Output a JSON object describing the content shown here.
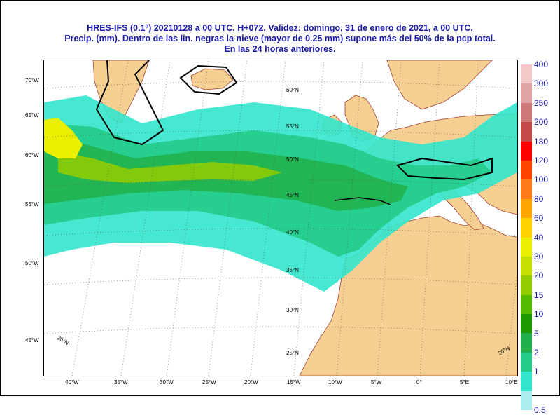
{
  "title": {
    "line1": "HRES-IFS (0.1º) 20210128 a 00 UTC.  H+072. Validez: domingo, 31 de enero de 2021,  a  00 UTC.",
    "line2": "Precip. (mm). Dentro de las lin. negras la nieve (mayor de 0.25 mm) supone más del 50% de la pcp total.",
    "line3": "En las 24 horas anteriores."
  },
  "axes": {
    "bottom": [
      "40°W",
      "35°W",
      "30°W",
      "25°W",
      "20°W",
      "15°W",
      "10°W",
      "5°W",
      "0°",
      "5°E",
      "10°E"
    ],
    "left": [
      "70°W",
      "65°W",
      "60°W",
      "55°W",
      "50°W",
      "45°W"
    ],
    "lat_inner": [
      "60°N",
      "55°N",
      "50°N",
      "45°N",
      "40°N",
      "35°N",
      "30°N",
      "25°N"
    ],
    "corner_left": "20°N",
    "corner_right": "20°N"
  },
  "legend": {
    "labels": [
      "400",
      "300",
      "250",
      "200",
      "180",
      "120",
      "100",
      "80",
      "60",
      "40",
      "30",
      "20",
      "15",
      "10",
      "5",
      "2",
      "1",
      "0.5"
    ],
    "colors": [
      "#f2c8c8",
      "#e0a6a6",
      "#cf7a7a",
      "#c44a4a",
      "#ff0000",
      "#ff4500",
      "#ff7a1a",
      "#ffa500",
      "#ffd200",
      "#e8f000",
      "#c4e000",
      "#94cc00",
      "#55bb00",
      "#1e9a00",
      "#22b04a",
      "#22cc88",
      "#33e6cc",
      "#aaeeee"
    ],
    "colors_top_to_bottom": true
  },
  "map_colors": {
    "sea": "#ffffff",
    "land": "#f6cf92",
    "border": "#a04030",
    "snow_line": "#000000",
    "grid": "#555555"
  }
}
